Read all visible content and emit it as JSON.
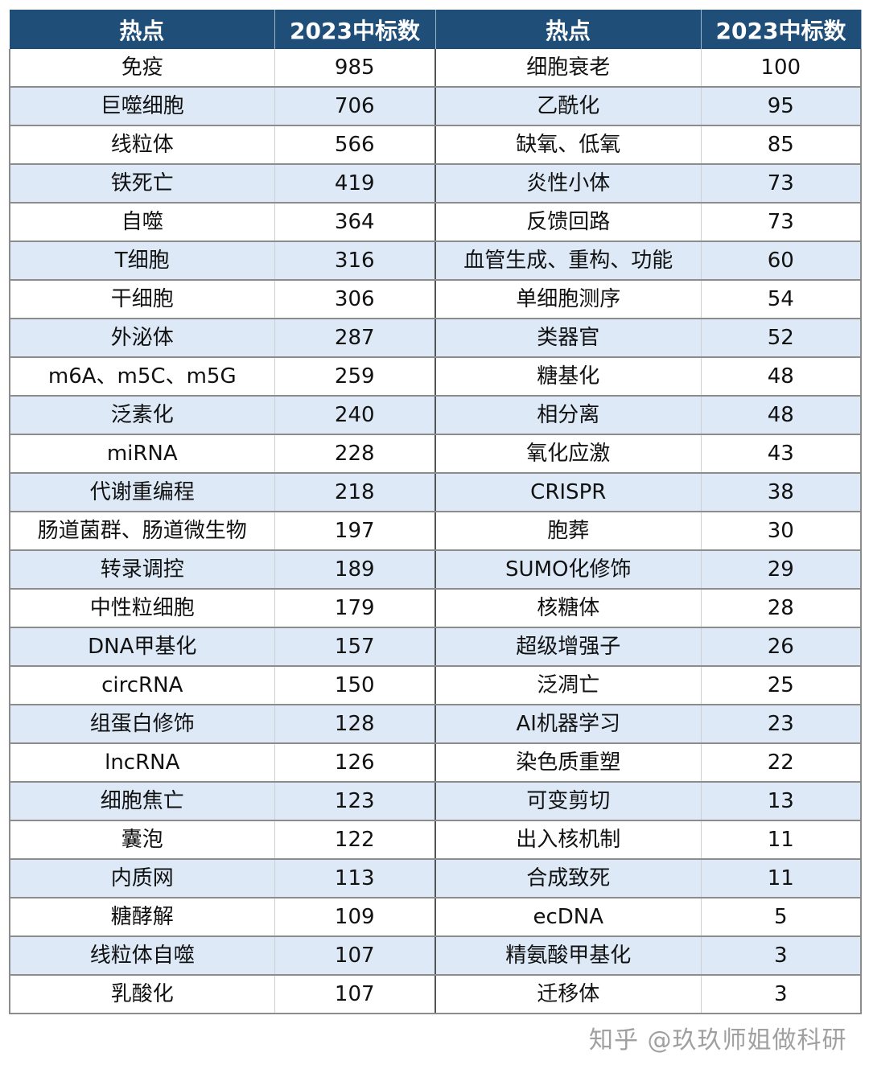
{
  "chart_data": {
    "type": "table",
    "headers": [
      "热点",
      "2023中标数",
      "热点",
      "2023中标数"
    ],
    "header_color": "#1f4e79",
    "alt_row_color": "#dde9f6",
    "rows": [
      [
        "免疫",
        "985",
        "细胞衰老",
        "100"
      ],
      [
        "巨噬细胞",
        "706",
        "乙酰化",
        "95"
      ],
      [
        "线粒体",
        "566",
        "缺氧、低氧",
        "85"
      ],
      [
        "铁死亡",
        "419",
        "炎性小体",
        "73"
      ],
      [
        "自噬",
        "364",
        "反馈回路",
        "73"
      ],
      [
        "T细胞",
        "316",
        "血管生成、重构、功能",
        "60"
      ],
      [
        "干细胞",
        "306",
        "单细胞测序",
        "54"
      ],
      [
        "外泌体",
        "287",
        "类器官",
        "52"
      ],
      [
        "m6A、m5C、m5G",
        "259",
        "糖基化",
        "48"
      ],
      [
        "泛素化",
        "240",
        "相分离",
        "48"
      ],
      [
        "miRNA",
        "228",
        "氧化应激",
        "43"
      ],
      [
        "代谢重编程",
        "218",
        "CRISPR",
        "38"
      ],
      [
        "肠道菌群、肠道微生物",
        "197",
        "胞葬",
        "30"
      ],
      [
        "转录调控",
        "189",
        "SUMO化修饰",
        "29"
      ],
      [
        "中性粒细胞",
        "179",
        "核糖体",
        "28"
      ],
      [
        "DNA甲基化",
        "157",
        "超级增强子",
        "26"
      ],
      [
        "circRNA",
        "150",
        "泛凋亡",
        "25"
      ],
      [
        "组蛋白修饰",
        "128",
        "AI机器学习",
        "23"
      ],
      [
        "lncRNA",
        "126",
        "染色质重塑",
        "22"
      ],
      [
        "细胞焦亡",
        "123",
        "可变剪切",
        "13"
      ],
      [
        "囊泡",
        "122",
        "出入核机制",
        "11"
      ],
      [
        "内质网",
        "113",
        "合成致死",
        "11"
      ],
      [
        "糖酵解",
        "109",
        "ecDNA",
        "5"
      ],
      [
        "线粒体自噬",
        "107",
        "精氨酸甲基化",
        "3"
      ],
      [
        "乳酸化",
        "107",
        "迁移体",
        "3"
      ]
    ]
  },
  "watermark": "知乎 @玖玖师姐做科研"
}
